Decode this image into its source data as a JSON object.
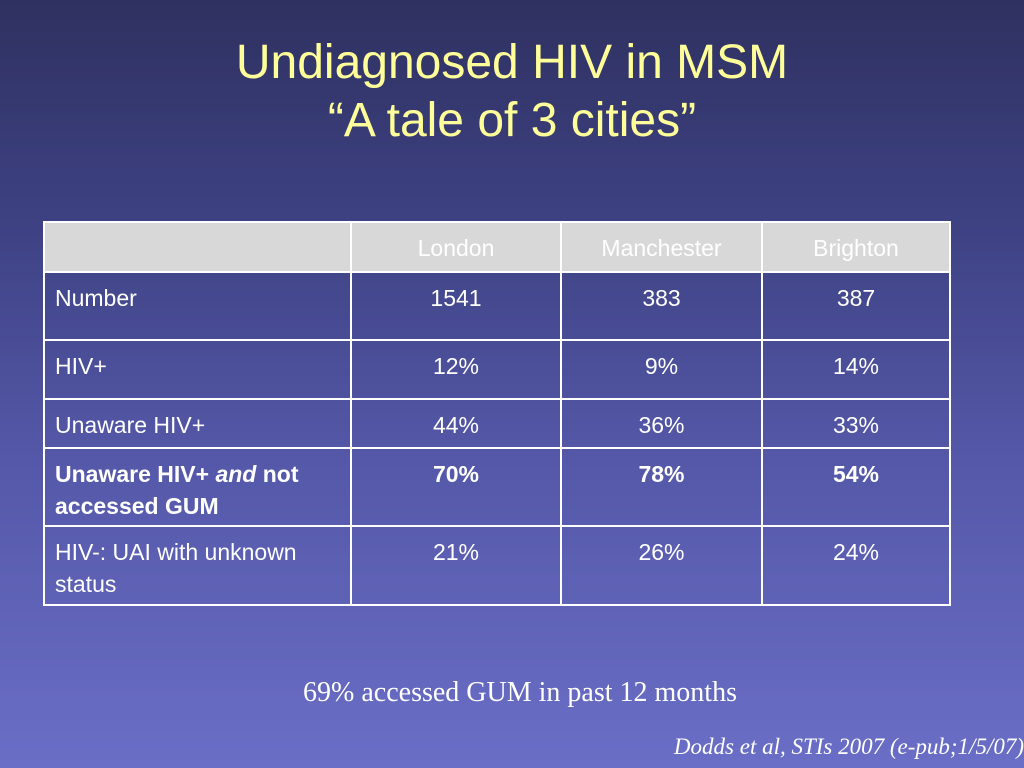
{
  "slide": {
    "title_line1": "Undiagnosed HIV in MSM",
    "title_line2": "“A tale of 3 cities”",
    "note": "69% accessed GUM in past 12 months",
    "citation": "Dodds et al, STIs 2007 (e-pub;1/5/07)"
  },
  "table": {
    "header": [
      "",
      "London",
      "Manchester",
      "Brighton"
    ],
    "rows": [
      {
        "label": "Number",
        "values": [
          "1541",
          "383",
          "387"
        ]
      },
      {
        "label": "HIV+",
        "values": [
          "12%",
          "9%",
          "14%"
        ]
      },
      {
        "label": "Unaware HIV+",
        "values": [
          "44%",
          "36%",
          "33%"
        ]
      },
      {
        "label_part1": "Unaware HIV+ ",
        "label_part2": "and",
        "label_part3": " not accessed GUM",
        "values": [
          "70%",
          "78%",
          "54%"
        ]
      },
      {
        "label": "HIV-: UAI with unknown status",
        "values": [
          "21%",
          "26%",
          "24%"
        ]
      }
    ]
  },
  "colors": {
    "title": "#ffff99",
    "header_fill": "#d8d8d8",
    "text": "#ffffff",
    "background_top": "#2f3160",
    "background_bottom": "#6a6ec6"
  }
}
